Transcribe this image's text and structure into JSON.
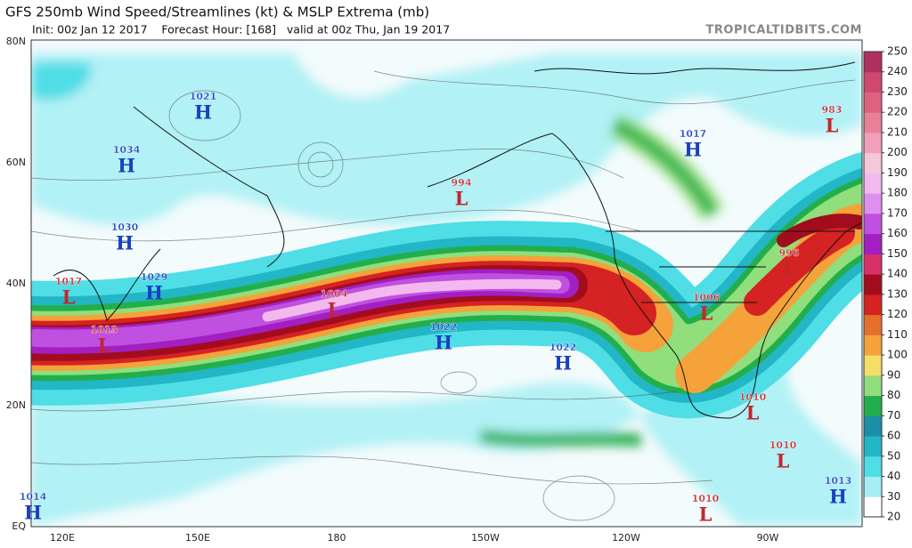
{
  "header": {
    "title": "GFS 250mb Wind Speed/Streamlines (kt) & MSLP Extrema (mb)",
    "subtitle": "Init: 00z Jan 12 2017    Forecast Hour: [168]   valid at 00z Thu, Jan 19 2017",
    "credit": "TROPICALTIDBITS.COM"
  },
  "lat_labels": [
    "80N",
    "60N",
    "40N",
    "20N",
    "EQ"
  ],
  "lon_labels": [
    "120E",
    "150E",
    "180",
    "150W",
    "120W",
    "90W"
  ],
  "colorbar": {
    "ticks": [
      20,
      30,
      40,
      50,
      60,
      70,
      80,
      90,
      100,
      110,
      120,
      130,
      140,
      150,
      160,
      170,
      180,
      190,
      200,
      210,
      220,
      230,
      240,
      250
    ],
    "colors": [
      "#ffffff",
      "#a6eef3",
      "#4fdde6",
      "#22b6c6",
      "#1a8fa6",
      "#23ae4c",
      "#90de7c",
      "#f3df68",
      "#f5a23b",
      "#e6702b",
      "#d52222",
      "#a10d1d",
      "#d8306a",
      "#a21fc2",
      "#c050df",
      "#df90ef",
      "#f3b9ee",
      "#f4c8d8",
      "#f0a1b9",
      "#e88098",
      "#df6181",
      "#cf4870",
      "#b03060"
    ]
  },
  "pressure_systems": [
    {
      "pressure": 1021,
      "type": "H"
    },
    {
      "pressure": 1034,
      "type": "H"
    },
    {
      "pressure": 1030,
      "type": "H"
    },
    {
      "pressure": 1017,
      "type": "L"
    },
    {
      "pressure": 1029,
      "type": "H"
    },
    {
      "pressure": 1013,
      "type": "L"
    },
    {
      "pressure": 1004,
      "type": "L"
    },
    {
      "pressure": 1022,
      "type": "H"
    },
    {
      "pressure": 1022,
      "type": "H"
    },
    {
      "pressure": 994,
      "type": "L"
    },
    {
      "pressure": 1017,
      "type": "H"
    },
    {
      "pressure": 983,
      "type": "L"
    },
    {
      "pressure": 996,
      "type": "L"
    },
    {
      "pressure": 1006,
      "type": "L"
    },
    {
      "pressure": 1010,
      "type": "L"
    },
    {
      "pressure": 1010,
      "type": "L"
    },
    {
      "pressure": 1010,
      "type": "L"
    },
    {
      "pressure": 1013,
      "type": "H"
    },
    {
      "pressure": 1014,
      "type": "H"
    }
  ]
}
